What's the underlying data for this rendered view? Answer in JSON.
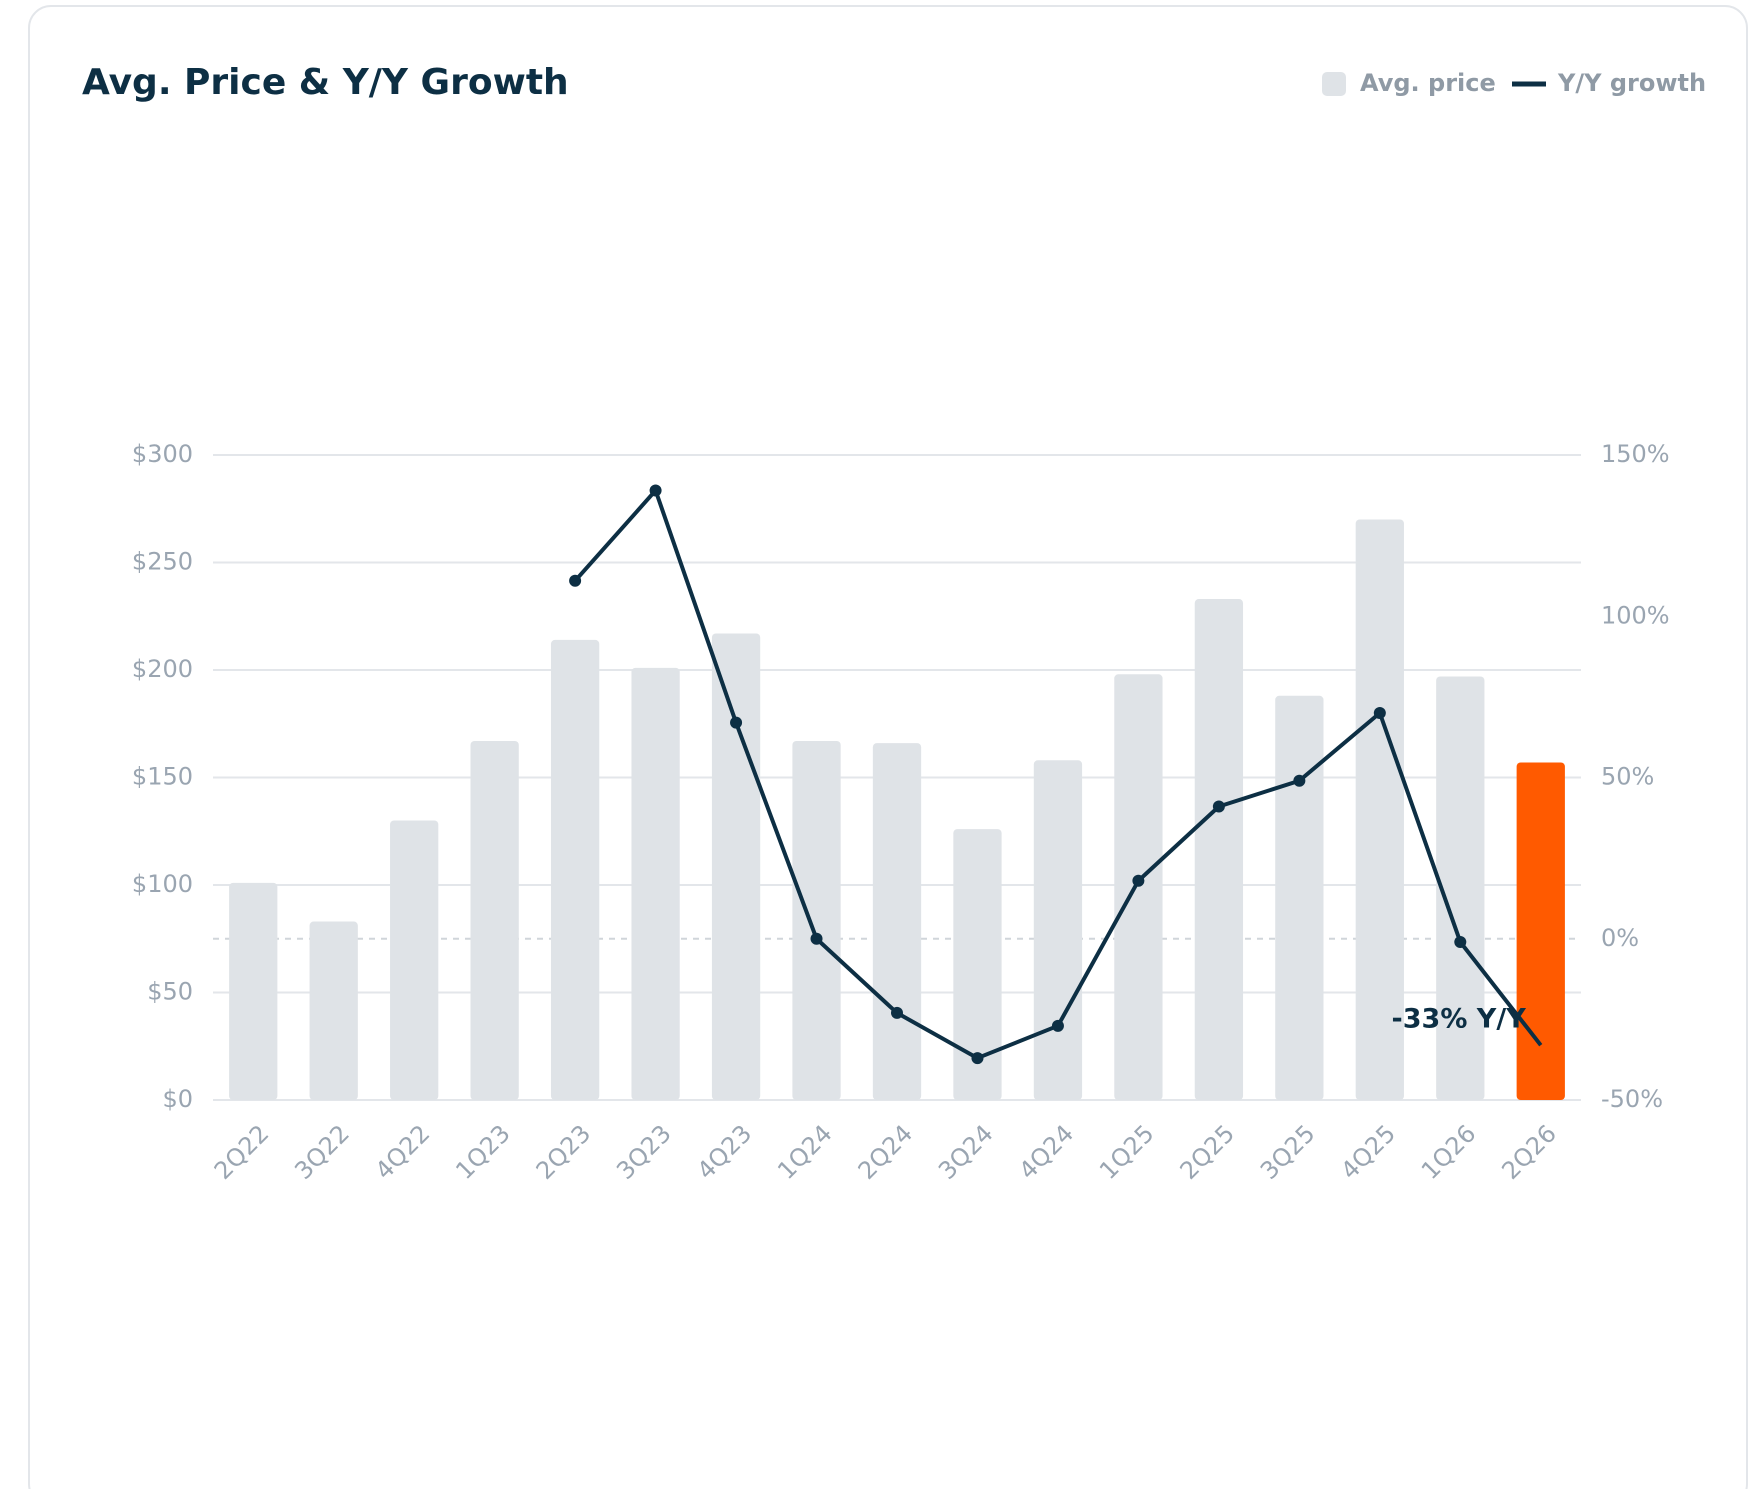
{
  "chart_data": {
    "type": "bar_line",
    "title": "Avg. Price & Y/Y Growth",
    "categories": [
      "2Q22",
      "3Q22",
      "4Q22",
      "1Q23",
      "2Q23",
      "3Q23",
      "4Q23",
      "1Q24",
      "2Q24",
      "3Q24",
      "4Q24",
      "1Q25",
      "2Q25",
      "3Q25",
      "4Q25",
      "1Q26",
      "2Q26"
    ],
    "series": [
      {
        "name": "Avg. price",
        "type": "bar",
        "color": "#dfe3e7",
        "colors": [
          "#dfe3e7",
          "#dfe3e7",
          "#dfe3e7",
          "#dfe3e7",
          "#dfe3e7",
          "#dfe3e7",
          "#dfe3e7",
          "#dfe3e7",
          "#dfe3e7",
          "#dfe3e7",
          "#dfe3e7",
          "#dfe3e7",
          "#dfe3e7",
          "#dfe3e7",
          "#dfe3e7",
          "#dfe3e7",
          "#ff5a00"
        ],
        "values": [
          101,
          83,
          130,
          167,
          214,
          201,
          217,
          167,
          166,
          126,
          158,
          198,
          233,
          188,
          270,
          197,
          157
        ]
      },
      {
        "name": "Y/Y growth",
        "type": "line",
        "axis": "y2",
        "color": "#0d2f44",
        "values": [
          null,
          null,
          null,
          null,
          111,
          139,
          67,
          0,
          -23,
          -37,
          -27,
          18,
          41,
          49,
          70,
          -1,
          -33
        ]
      }
    ],
    "annotation": "-33% Y/Y",
    "ylim": [
      0,
      300
    ],
    "yticks": [
      {
        "value": 0,
        "label": "$0"
      },
      {
        "value": 50,
        "label": "$50"
      },
      {
        "value": 100,
        "label": "$100"
      },
      {
        "value": 150,
        "label": "$150"
      },
      {
        "value": 200,
        "label": "$200"
      },
      {
        "value": 250,
        "label": "$250"
      },
      {
        "value": 300,
        "label": "$300"
      }
    ],
    "y2lim": [
      -50,
      150
    ],
    "y2ticks": [
      {
        "value": -50,
        "label": "-50%"
      },
      {
        "value": 0,
        "label": "0%"
      },
      {
        "value": 50,
        "label": "50%"
      },
      {
        "value": 100,
        "label": "100%"
      },
      {
        "value": 150,
        "label": "150%"
      }
    ],
    "grid": true,
    "zero_line": true,
    "legend": "top-right"
  }
}
